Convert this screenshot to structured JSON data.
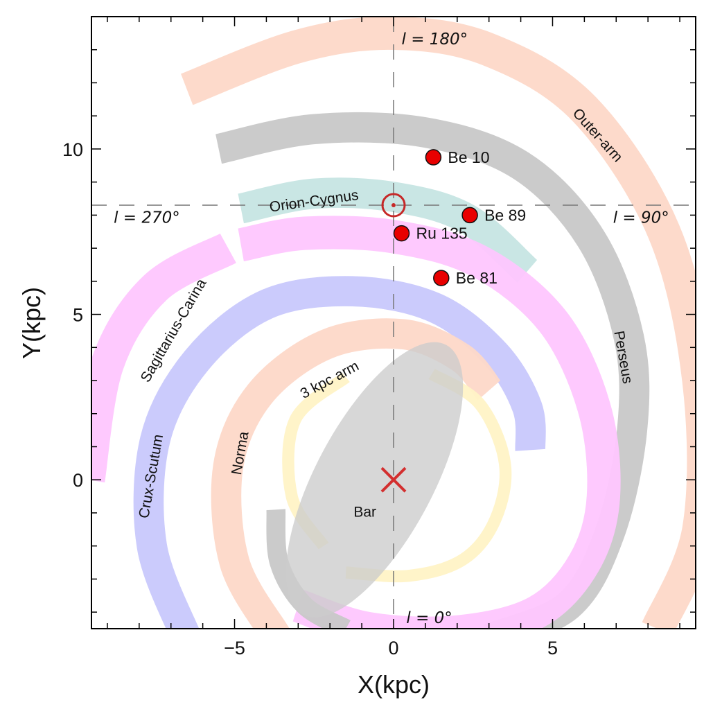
{
  "chart_data": {
    "type": "scatter",
    "xlabel": "X(kpc)",
    "ylabel": "Y(kpc)",
    "xlim": [
      -9.5,
      9.5
    ],
    "ylim": [
      -4.5,
      14.0
    ],
    "xticks": [
      -5,
      0,
      5
    ],
    "xtick_labels": [
      "−5",
      "0",
      "5"
    ],
    "yticks": [
      0,
      5,
      10
    ],
    "ytick_labels": [
      "0",
      "5",
      "10"
    ],
    "grid": false,
    "sun": {
      "x": 0,
      "y": 8.3
    },
    "galactic_center": {
      "x": 0,
      "y": 0
    },
    "longitude_labels": [
      {
        "text": "l = 180°",
        "x": 0.25,
        "y": 13.3
      },
      {
        "text": "l = 270°",
        "x": -8.8,
        "y": 7.9
      },
      {
        "text": "l = 90°",
        "x": 6.9,
        "y": 7.9
      },
      {
        "text": "l = 0°",
        "x": 0.4,
        "y": -4.2
      }
    ],
    "clusters": [
      {
        "name": "Be 10",
        "x": 1.25,
        "y": 9.75
      },
      {
        "name": "Be 89",
        "x": 2.4,
        "y": 8.0
      },
      {
        "name": "Ru 135",
        "x": 0.25,
        "y": 7.45
      },
      {
        "name": "Be 81",
        "x": 1.5,
        "y": 6.1
      }
    ],
    "arms": [
      {
        "name": "Outer-arm",
        "color": "#fdd8c8",
        "label_x": 6.4,
        "label_y": 10.4,
        "label_rot": 48,
        "path": [
          [
            -6.5,
            11.8
          ],
          [
            -3,
            13.1
          ],
          [
            0,
            13.5
          ],
          [
            3,
            13.0
          ],
          [
            6,
            11.2
          ],
          [
            8.5,
            7.5
          ],
          [
            9.6,
            3
          ],
          [
            9.6,
            -1.5
          ],
          [
            8.3,
            -4.5
          ]
        ],
        "width": 1.05
      },
      {
        "name": "Perseus",
        "color": "#c8c8c8",
        "label_x": 7.2,
        "label_y": 3.7,
        "label_rot": 80,
        "path": [
          [
            -5.5,
            10.0
          ],
          [
            -2.5,
            10.6
          ],
          [
            1,
            10.5
          ],
          [
            4,
            9.5
          ],
          [
            6.2,
            7.3
          ],
          [
            7.4,
            4.3
          ],
          [
            7.5,
            1.5
          ],
          [
            6.8,
            -1.6
          ],
          [
            5.5,
            -3.8
          ],
          [
            3,
            -4.8
          ]
        ],
        "width": 0.95
      },
      {
        "name": "Orion-Cygnus",
        "color": "#c6e5e3",
        "label_x": -2.5,
        "label_y": 8.4,
        "label_rot": -8,
        "path": [
          [
            -4.8,
            8.2
          ],
          [
            -2.5,
            8.65
          ],
          [
            0,
            8.55
          ],
          [
            2.3,
            7.9
          ],
          [
            4.2,
            6.3
          ]
        ],
        "width": 0.95
      },
      {
        "name": "Sagittarius-Carina",
        "color": "#fec6fe",
        "label_x": -6.9,
        "label_y": 4.5,
        "label_rot": -60,
        "path": [
          [
            -4.8,
            7.1
          ],
          [
            -2.8,
            7.45
          ],
          [
            0,
            7.35
          ],
          [
            2.7,
            6.6
          ],
          [
            5,
            4.8
          ],
          [
            6.3,
            2.2
          ],
          [
            6.6,
            -0.5
          ],
          [
            6,
            -2.5
          ],
          [
            4.5,
            -4
          ],
          [
            2,
            -4.6
          ],
          [
            -0.8,
            -4.5
          ],
          [
            -3,
            -3.8
          ]
        ],
        "width": 1.05
      },
      {
        "name": "Sagittarius-Carina",
        "color": "#fec6fe",
        "label_x": -9.5,
        "label_y": -9.5,
        "label_rot": 0,
        "path": [
          [
            -5.2,
            7.0
          ],
          [
            -7.5,
            5.8
          ],
          [
            -9.0,
            3.5
          ],
          [
            -9.6,
            0
          ]
        ],
        "width": 1.05
      },
      {
        "name": "Crux-Scutum",
        "color": "#c8c8fc",
        "label_x": -7.6,
        "label_y": 0.1,
        "label_rot": -80,
        "path": [
          [
            -6.5,
            -4.8
          ],
          [
            -7.6,
            -2
          ],
          [
            -7.5,
            1.2
          ],
          [
            -6.2,
            3.6
          ],
          [
            -4,
            5.3
          ],
          [
            -1.3,
            5.7
          ],
          [
            1.3,
            5.2
          ],
          [
            3.2,
            3.8
          ],
          [
            4.2,
            2.2
          ],
          [
            4.3,
            0.9
          ]
        ],
        "width": 0.95
      },
      {
        "name": "Norma",
        "color": "#fdd8c8",
        "label_x": -4.8,
        "label_y": 0.8,
        "label_rot": -80,
        "path": [
          [
            -3.7,
            -4.7
          ],
          [
            -5.0,
            -2.5
          ],
          [
            -5.2,
            0.4
          ],
          [
            -4.2,
            2.6
          ],
          [
            -2.1,
            4.1
          ],
          [
            0.3,
            4.4
          ],
          [
            2.1,
            3.7
          ],
          [
            3.0,
            2.7
          ]
        ],
        "width": 0.95
      },
      {
        "name": "3 kpc arm",
        "color": "#fff3c6",
        "label_x": -2.0,
        "label_y": 3.0,
        "label_rot": -28,
        "path": [
          [
            1.2,
            3.2
          ],
          [
            2.7,
            2.3
          ],
          [
            3.5,
            0.5
          ],
          [
            3.2,
            -1.2
          ],
          [
            2.2,
            -2.4
          ],
          [
            0.5,
            -2.9
          ],
          [
            -1.5,
            -2.8
          ]
        ],
        "width": 0.38
      },
      {
        "name": "3 kpc arm",
        "color": "#fff3c6",
        "label_x": -9.5,
        "label_y": -9.5,
        "label_rot": 0,
        "path": [
          [
            -1.5,
            3.1
          ],
          [
            -3.1,
            1.8
          ],
          [
            -3.2,
            -0.5
          ],
          [
            -2.2,
            -2.0
          ]
        ],
        "width": 0.38
      },
      {
        "name": "Perseus inner",
        "color": "#c8c8c8",
        "label_x": -9.5,
        "label_y": -9.5,
        "label_rot": 0,
        "path": [
          [
            -3.7,
            -0.9
          ],
          [
            -3.6,
            -2.5
          ],
          [
            -2.8,
            -3.8
          ],
          [
            -1.5,
            -4.5
          ]
        ],
        "width": 0.6
      }
    ],
    "bar": {
      "name": "Bar",
      "label_x": -0.9,
      "label_y": -1.0,
      "center_x": -0.6,
      "center_y": 0.0,
      "semi_major": 4.8,
      "semi_minor": 1.85,
      "angle_deg": 62
    }
  },
  "colors": {
    "sun": "#c62828",
    "cluster_fill": "#e80000",
    "center_cross": "#d32f2f",
    "bar_fill": "#cccccc"
  }
}
